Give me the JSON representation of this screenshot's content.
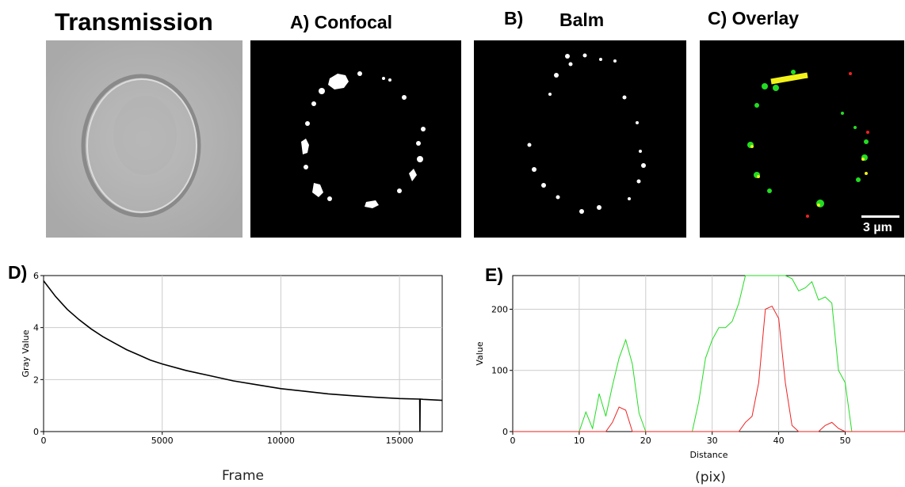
{
  "titles": {
    "transmission": "Transmission",
    "confocal": "A)  Confocal",
    "balm_letter": "B)",
    "balm": "Balm",
    "overlay": "C)   Overlay",
    "d": "D)",
    "e": "E)"
  },
  "scale_bar": "3 µm",
  "colors": {
    "green": "#22dd22",
    "red": "#ee2222",
    "grid": "#cccccc",
    "yellow": "#f2f21a"
  },
  "chart_data": [
    {
      "type": "line",
      "panel": "D",
      "xlabel": "Frame",
      "ylabel": "Gray Value",
      "xlim": [
        0,
        16800
      ],
      "ylim": [
        0,
        6
      ],
      "xticks": [
        0,
        5000,
        10000,
        15000
      ],
      "xtick_labels": [
        "0",
        "5000",
        "10000",
        "15000"
      ],
      "yticks": [
        0,
        2,
        4,
        6
      ],
      "ytick_labels": [
        "0",
        "2",
        "4",
        "6"
      ],
      "grid": true,
      "series": [
        {
          "values": [
            [
              0,
              5.8
            ],
            [
              500,
              5.2
            ],
            [
              1000,
              4.7
            ],
            [
              1500,
              4.3
            ],
            [
              2000,
              3.95
            ],
            [
              2500,
              3.65
            ],
            [
              3000,
              3.4
            ],
            [
              3500,
              3.15
            ],
            [
              4000,
              2.95
            ],
            [
              4500,
              2.75
            ],
            [
              5000,
              2.6
            ],
            [
              6000,
              2.35
            ],
            [
              7000,
              2.15
            ],
            [
              8000,
              1.95
            ],
            [
              9000,
              1.8
            ],
            [
              10000,
              1.65
            ],
            [
              11000,
              1.55
            ],
            [
              12000,
              1.45
            ],
            [
              13000,
              1.38
            ],
            [
              14000,
              1.32
            ],
            [
              15000,
              1.27
            ],
            [
              15850,
              1.25
            ],
            [
              15860,
              0
            ],
            [
              15870,
              1.25
            ],
            [
              16000,
              1.24
            ],
            [
              16800,
              1.2
            ]
          ]
        }
      ]
    },
    {
      "type": "line",
      "panel": "E",
      "xlabel": "Distance",
      "xlabel2": "(pix)",
      "ylabel": "Value",
      "xlim": [
        0,
        59
      ],
      "ylim": [
        0,
        255
      ],
      "xticks": [
        0,
        10,
        20,
        30,
        40,
        50
      ],
      "xtick_labels": [
        "0",
        "10",
        "20",
        "30",
        "40",
        "50"
      ],
      "yticks": [
        0,
        100,
        200
      ],
      "ytick_labels": [
        "0",
        "100",
        "200"
      ],
      "grid": true,
      "series": [
        {
          "color": "green",
          "values": [
            [
              0,
              0
            ],
            [
              10,
              0
            ],
            [
              11,
              32
            ],
            [
              12,
              5
            ],
            [
              13,
              62
            ],
            [
              14,
              25
            ],
            [
              15,
              75
            ],
            [
              16,
              120
            ],
            [
              17,
              150
            ],
            [
              18,
              110
            ],
            [
              19,
              30
            ],
            [
              20,
              0
            ],
            [
              27,
              0
            ],
            [
              28,
              50
            ],
            [
              29,
              120
            ],
            [
              30,
              150
            ],
            [
              31,
              170
            ],
            [
              32,
              170
            ],
            [
              33,
              180
            ],
            [
              34,
              210
            ],
            [
              35,
              255
            ],
            [
              36,
              255
            ],
            [
              37,
              255
            ],
            [
              38,
              255
            ],
            [
              39,
              255
            ],
            [
              40,
              255
            ],
            [
              41,
              255
            ],
            [
              42,
              250
            ],
            [
              43,
              230
            ],
            [
              44,
              235
            ],
            [
              45,
              245
            ],
            [
              46,
              215
            ],
            [
              47,
              220
            ],
            [
              48,
              210
            ],
            [
              49,
              100
            ],
            [
              50,
              80
            ],
            [
              51,
              0
            ],
            [
              59,
              0
            ]
          ]
        },
        {
          "color": "red",
          "values": [
            [
              0,
              0
            ],
            [
              14,
              0
            ],
            [
              15,
              15
            ],
            [
              16,
              40
            ],
            [
              17,
              35
            ],
            [
              18,
              0
            ],
            [
              34,
              0
            ],
            [
              35,
              15
            ],
            [
              36,
              25
            ],
            [
              37,
              80
            ],
            [
              38,
              200
            ],
            [
              39,
              205
            ],
            [
              40,
              185
            ],
            [
              41,
              80
            ],
            [
              42,
              10
            ],
            [
              43,
              0
            ],
            [
              46,
              0
            ],
            [
              47,
              10
            ],
            [
              48,
              15
            ],
            [
              49,
              5
            ],
            [
              50,
              0
            ],
            [
              59,
              0
            ]
          ]
        }
      ]
    }
  ]
}
